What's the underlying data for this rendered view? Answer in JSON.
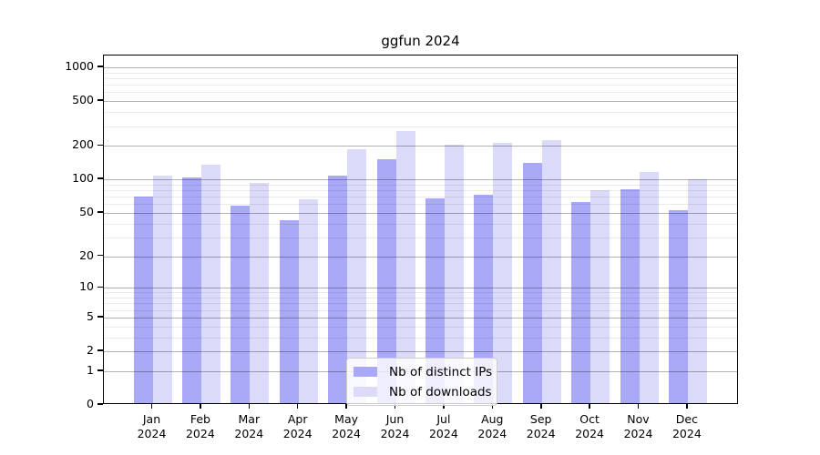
{
  "chart_data": {
    "type": "bar",
    "title": "ggfun 2024",
    "categories": [
      "Jan",
      "Feb",
      "Mar",
      "Apr",
      "May",
      "Jun",
      "Jul",
      "Aug",
      "Sep",
      "Oct",
      "Nov",
      "Dec"
    ],
    "year_label": "2024",
    "series": [
      {
        "name": "Nb of distinct IPs",
        "color": "#a9a9f7",
        "values": [
          68,
          100,
          56,
          41,
          105,
          145,
          65,
          70,
          135,
          60,
          79,
          51
        ]
      },
      {
        "name": "Nb of downloads",
        "color": "#dbdbf9",
        "values": [
          105,
          130,
          90,
          64,
          180,
          260,
          198,
          204,
          217,
          77,
          112,
          96
        ]
      }
    ],
    "yscale": "log1p",
    "yticks": [
      0,
      1,
      2,
      5,
      10,
      20,
      50,
      100,
      200,
      500,
      1000
    ],
    "minor_yticks": [
      3,
      4,
      6,
      7,
      8,
      9,
      30,
      40,
      60,
      70,
      80,
      90,
      300,
      400,
      600,
      700,
      800,
      900
    ],
    "ylim": [
      0,
      1276
    ],
    "grid": true,
    "legend_position": "lower center",
    "colors": {
      "axis": "#000000",
      "major_grid": "#b3b3b3",
      "minor_grid": "#ebebeb",
      "background": "#ffffff"
    }
  }
}
